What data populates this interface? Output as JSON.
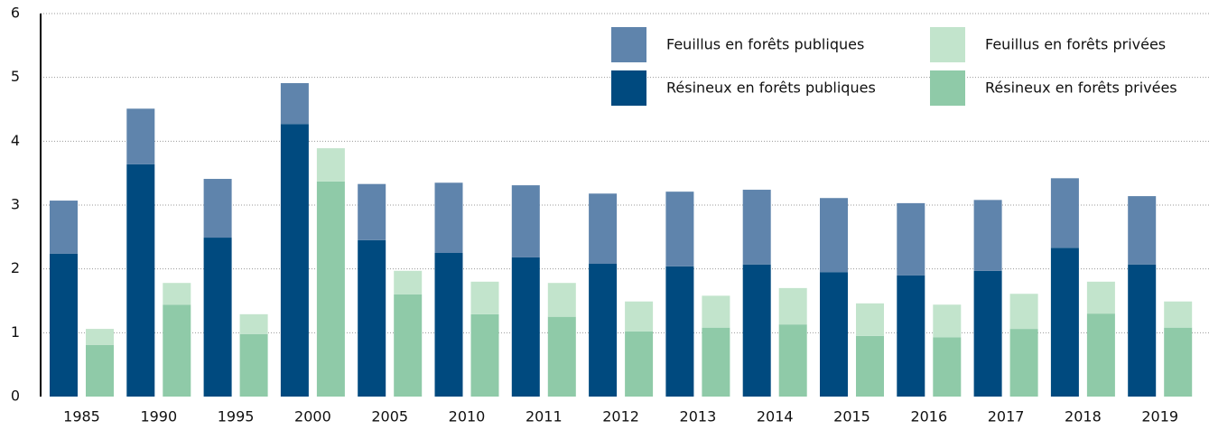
{
  "chart_data": {
    "type": "stacked_grouped_bar",
    "categories": [
      "1985",
      "1990",
      "1995",
      "2000",
      "2005",
      "2010",
      "2011",
      "2012",
      "2013",
      "2014",
      "2015",
      "2016",
      "2017",
      "2018",
      "2019"
    ],
    "series": [
      {
        "name": "Résineux en forêts publiques",
        "color": "#004a7f",
        "stack": 0,
        "values": [
          2.24,
          3.64,
          2.49,
          4.27,
          2.45,
          2.25,
          2.18,
          2.08,
          2.04,
          2.07,
          1.95,
          1.9,
          1.97,
          2.33,
          2.07
        ]
      },
      {
        "name": "Feuillus en forêts publiques",
        "color": "#5f84ac",
        "stack": 0,
        "values": [
          0.83,
          0.87,
          0.92,
          0.64,
          0.88,
          1.1,
          1.13,
          1.1,
          1.17,
          1.17,
          1.16,
          1.13,
          1.11,
          1.09,
          1.07
        ]
      },
      {
        "name": "Résineux en forêts privées",
        "color": "#8fcaa8",
        "stack": 1,
        "values": [
          0.81,
          1.44,
          0.98,
          3.37,
          1.6,
          1.29,
          1.25,
          1.02,
          1.08,
          1.13,
          0.95,
          0.93,
          1.06,
          1.3,
          1.08
        ]
      },
      {
        "name": "Feuillus en forêts privées",
        "color": "#c2e4cc",
        "stack": 1,
        "values": [
          0.25,
          0.34,
          0.31,
          0.52,
          0.37,
          0.51,
          0.53,
          0.47,
          0.5,
          0.57,
          0.51,
          0.51,
          0.55,
          0.5,
          0.41
        ]
      }
    ],
    "ylim": [
      0,
      6
    ],
    "yticks": [
      0,
      1,
      2,
      3,
      4,
      5,
      6
    ],
    "grid": true
  }
}
